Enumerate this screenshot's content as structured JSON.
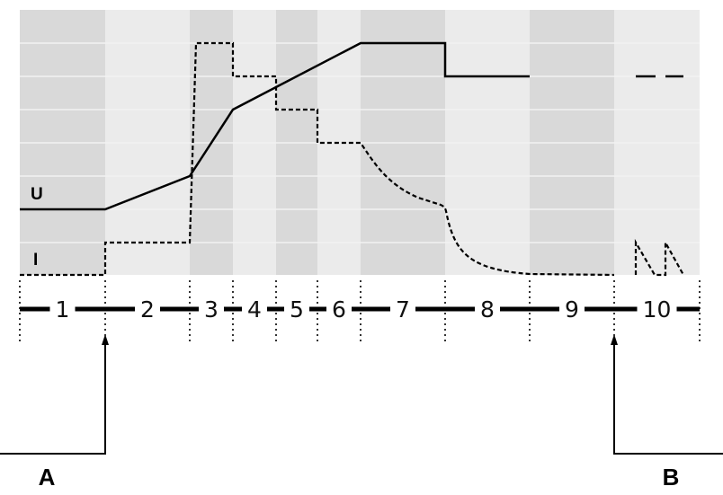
{
  "curves": {
    "voltage_label": "U",
    "current_label": "I"
  },
  "phases": [
    "1",
    "2",
    "3",
    "4",
    "5",
    "6",
    "7",
    "8",
    "9",
    "10"
  ],
  "markers": {
    "start": "A",
    "end": "B"
  },
  "colors": {
    "band_dark": "#d9d9d9",
    "band_light": "#ebebeb",
    "line": "#000000"
  }
}
